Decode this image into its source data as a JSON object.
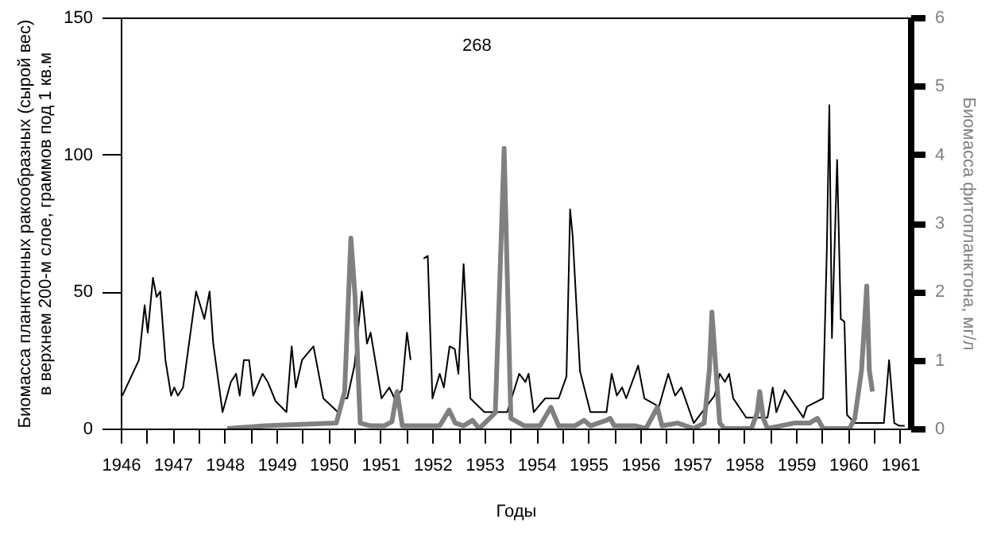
{
  "chart_data": {
    "type": "line",
    "xlabel": "Годы",
    "ylabel": "Биомасса планктонных ракообразных (сырой вес)\nв верхнем 200-м слое, граммов под 1 кв.м",
    "y2label": "Биомасса фитопланктона, мг/л",
    "xlim": [
      1946,
      1961.2
    ],
    "xticks": [
      1946,
      {
        "value": 1946.5,
        "label": null
      },
      1947,
      {
        "value": 1947.5,
        "label": null
      },
      1948,
      {
        "value": 1948.5,
        "label": null
      },
      1949,
      {
        "value": 1949.5,
        "label": null
      },
      1950,
      {
        "value": 1950.5,
        "label": null
      },
      1951,
      {
        "value": 1951.5,
        "label": null
      },
      1952,
      {
        "value": 1952.5,
        "label": null
      },
      1953,
      {
        "value": 1953.5,
        "label": null
      },
      1954,
      {
        "value": 1954.5,
        "label": null
      },
      1955,
      {
        "value": 1955.5,
        "label": null
      },
      1956,
      {
        "value": 1956.5,
        "label": null
      },
      1957,
      {
        "value": 1957.5,
        "label": null
      },
      1958,
      {
        "value": 1958.5,
        "label": null
      },
      1959,
      {
        "value": 1959.5,
        "label": null
      },
      1960,
      {
        "value": 1960.5,
        "label": null
      },
      1961
    ],
    "ylim": [
      0,
      150
    ],
    "yticks": [
      0,
      50,
      100,
      150
    ],
    "y2lim": [
      0,
      6
    ],
    "y2ticks": [
      0,
      1,
      2,
      3,
      4,
      5,
      6
    ],
    "annotations": [
      "268"
    ],
    "series": [
      {
        "color": "#000000",
        "x": [
          1946.03,
          1946.35,
          1946.46,
          1946.52,
          1946.62,
          1946.69,
          1946.76,
          1946.86,
          1946.97,
          1947.03,
          1947.1,
          1947.2,
          1947.45,
          1947.61,
          1947.71,
          1947.78,
          1947.96,
          1948.12,
          1948.22,
          1948.29,
          1948.37,
          1948.47,
          1948.55,
          1948.73,
          1948.83,
          1948.98,
          1949.19,
          1949.29,
          1949.37,
          1949.49,
          1949.71,
          1949.9,
          1950.18,
          1950.25,
          1950.36,
          1950.5,
          1950.64,
          1950.74,
          1950.81,
          1951.02,
          1951.17,
          1951.27,
          1951.41,
          1951.51,
          1951.58,
          1951.72,
          1951.83,
          1951.91,
          1952,
          1952.14,
          1952.22,
          1952.33,
          1952.43,
          1952.5,
          1952.6,
          1952.73,
          1953,
          1953.44,
          1953.67,
          1953.79,
          1953.85,
          1953.95,
          1954.17,
          1954.43,
          1954.58,
          1954.65,
          1954.7,
          1954.84,
          1955.04,
          1955.35,
          1955.45,
          1955.55,
          1955.65,
          1955.73,
          1955.96,
          1956.08,
          1956.36,
          1956.54,
          1956.67,
          1956.79,
          1957.03,
          1957.43,
          1957.53,
          1957.63,
          1957.71,
          1957.79,
          1958.04,
          1958.45,
          1958.55,
          1958.62,
          1958.78,
          1959.14,
          1959.21,
          1959.52,
          1959.59,
          1959.64,
          1959.69,
          1959.79,
          1959.86,
          1959.93,
          1959.98,
          1960.13,
          1960.69,
          1960.79,
          1960.89,
          1960.99,
          1961.09
        ],
        "values": [
          12,
          25,
          45,
          35,
          55,
          48,
          50,
          25,
          12,
          15,
          12,
          15,
          50,
          40,
          50,
          31,
          6,
          17,
          20,
          12,
          25,
          25,
          12,
          20,
          17,
          10,
          6,
          30,
          15,
          25,
          30,
          11,
          6,
          11,
          11,
          23,
          50,
          31,
          35,
          11,
          15,
          11,
          14,
          35,
          25,
          null,
          62,
          63,
          11,
          20,
          15,
          30,
          29,
          20,
          60,
          11,
          6,
          6,
          20,
          17,
          20,
          6,
          11,
          11,
          19,
          80,
          70,
          21,
          6,
          6,
          20,
          12,
          15,
          11,
          23,
          11,
          8,
          20,
          12,
          15,
          2,
          12,
          20,
          17,
          20,
          11,
          4,
          4,
          15,
          6,
          14,
          4,
          8,
          11,
          64,
          118,
          33,
          98,
          40,
          39,
          5,
          2,
          2,
          25,
          2,
          1,
          1
        ]
      },
      {
        "color": "#808080",
        "axis": "y2",
        "x": [
          1948.05,
          1948.78,
          1950.15,
          1950.31,
          1950.43,
          1950.51,
          1950.61,
          1950.81,
          1951.07,
          1951.22,
          1951.32,
          1951.42,
          1952.14,
          1952.32,
          1952.44,
          1952.6,
          1952.77,
          1952.9,
          1953.21,
          1953.31,
          1953.38,
          1953.44,
          1953.51,
          1953.77,
          1954.07,
          1954.28,
          1954.43,
          1954.74,
          1954.92,
          1955.04,
          1955.35,
          1955.42,
          1955.5,
          1955.91,
          1956.11,
          1956.33,
          1956.42,
          1956.72,
          1957.03,
          1957.23,
          1957.33,
          1957.38,
          1957.45,
          1957.53,
          1957.62,
          1958.14,
          1958.25,
          1958.3,
          1958.37,
          1958.45,
          1958.96,
          1959.26,
          1959.41,
          1959.52,
          1960.03,
          1960.13,
          1960.26,
          1960.36,
          1960.41,
          1960.47
        ],
        "values": [
          0,
          0.04,
          0.08,
          0.54,
          2.78,
          1.93,
          0.08,
          0.04,
          0.04,
          0.1,
          0.54,
          0.04,
          0.04,
          0.27,
          0.08,
          0.04,
          0.12,
          0,
          0.23,
          2.47,
          4.09,
          2.24,
          0.15,
          0.04,
          0.04,
          0.31,
          0.04,
          0.04,
          0.12,
          0.04,
          0.12,
          0.15,
          0.04,
          0.04,
          0,
          0.31,
          0.04,
          0.08,
          0,
          0.08,
          0.85,
          1.7,
          0.93,
          0.08,
          0,
          0,
          0.23,
          0.54,
          0.15,
          0,
          0.08,
          0.08,
          0.15,
          0,
          0,
          0.15,
          0.85,
          2.08,
          0.85,
          0.54
        ]
      }
    ]
  }
}
